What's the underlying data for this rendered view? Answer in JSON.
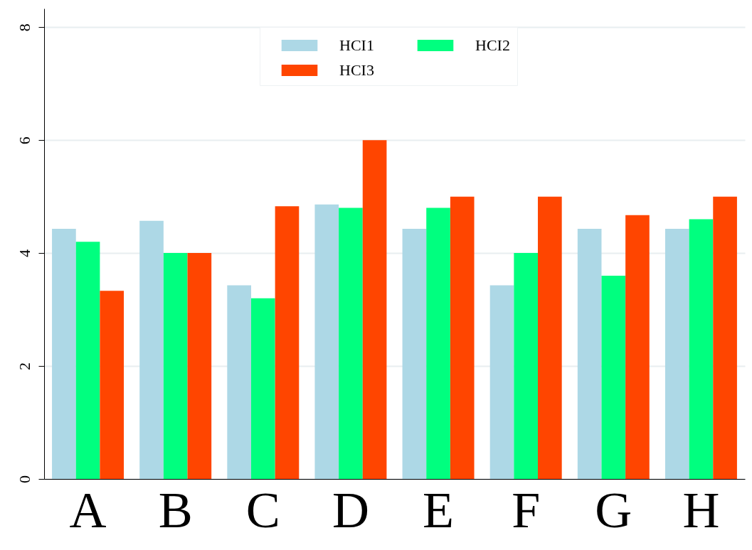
{
  "chart_data": {
    "type": "bar",
    "categories": [
      "A",
      "B",
      "C",
      "D",
      "E",
      "F",
      "G",
      "H"
    ],
    "series": [
      {
        "name": "HCI1",
        "color": "#add8e6",
        "values": [
          4.43,
          4.57,
          3.43,
          4.86,
          4.43,
          3.43,
          4.43,
          4.43
        ]
      },
      {
        "name": "HCI2",
        "color": "#00ff7f",
        "values": [
          4.2,
          4.0,
          3.2,
          4.8,
          4.8,
          4.0,
          3.6,
          4.6
        ]
      },
      {
        "name": "HCI3",
        "color": "#ff4500",
        "values": [
          3.33,
          4.0,
          4.83,
          6.0,
          5.0,
          5.0,
          4.67,
          5.0
        ]
      }
    ],
    "ylim": [
      0,
      8.33
    ],
    "yticks": [
      0,
      2,
      4,
      6,
      8
    ],
    "grid": "y",
    "legend": "top"
  }
}
